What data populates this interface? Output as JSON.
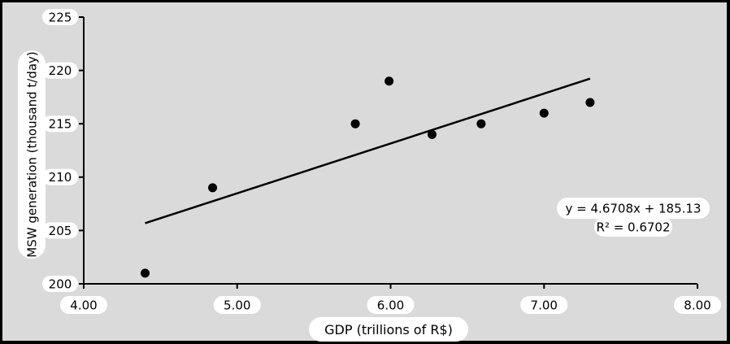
{
  "chart_data": {
    "type": "scatter",
    "xlabel": "GDP (trillions of R$)",
    "ylabel": "MSW generation (thousand t/day)",
    "xlim": [
      4.0,
      8.0
    ],
    "ylim": [
      200,
      225
    ],
    "x_ticks": [
      "4.00",
      "5.00",
      "6.00",
      "7.00",
      "8.00"
    ],
    "y_ticks": [
      "200",
      "205",
      "210",
      "215",
      "220",
      "225"
    ],
    "points": [
      {
        "x": 4.4,
        "y": 201
      },
      {
        "x": 4.84,
        "y": 209
      },
      {
        "x": 5.77,
        "y": 215
      },
      {
        "x": 5.99,
        "y": 219
      },
      {
        "x": 6.27,
        "y": 214
      },
      {
        "x": 6.59,
        "y": 215
      },
      {
        "x": 7.0,
        "y": 216
      },
      {
        "x": 7.3,
        "y": 217
      }
    ],
    "trendline": {
      "slope": 4.6708,
      "intercept": 185.13,
      "x_start": 4.4,
      "x_end": 7.3
    },
    "equation": "y = 4.6708x + 185.13",
    "r_squared": "R² = 0.6702",
    "grid": false,
    "colors": {
      "background": "#dadada",
      "frame": "#000000",
      "marker": "#000000",
      "line": "#000000",
      "label_box": "#ffffff"
    }
  }
}
